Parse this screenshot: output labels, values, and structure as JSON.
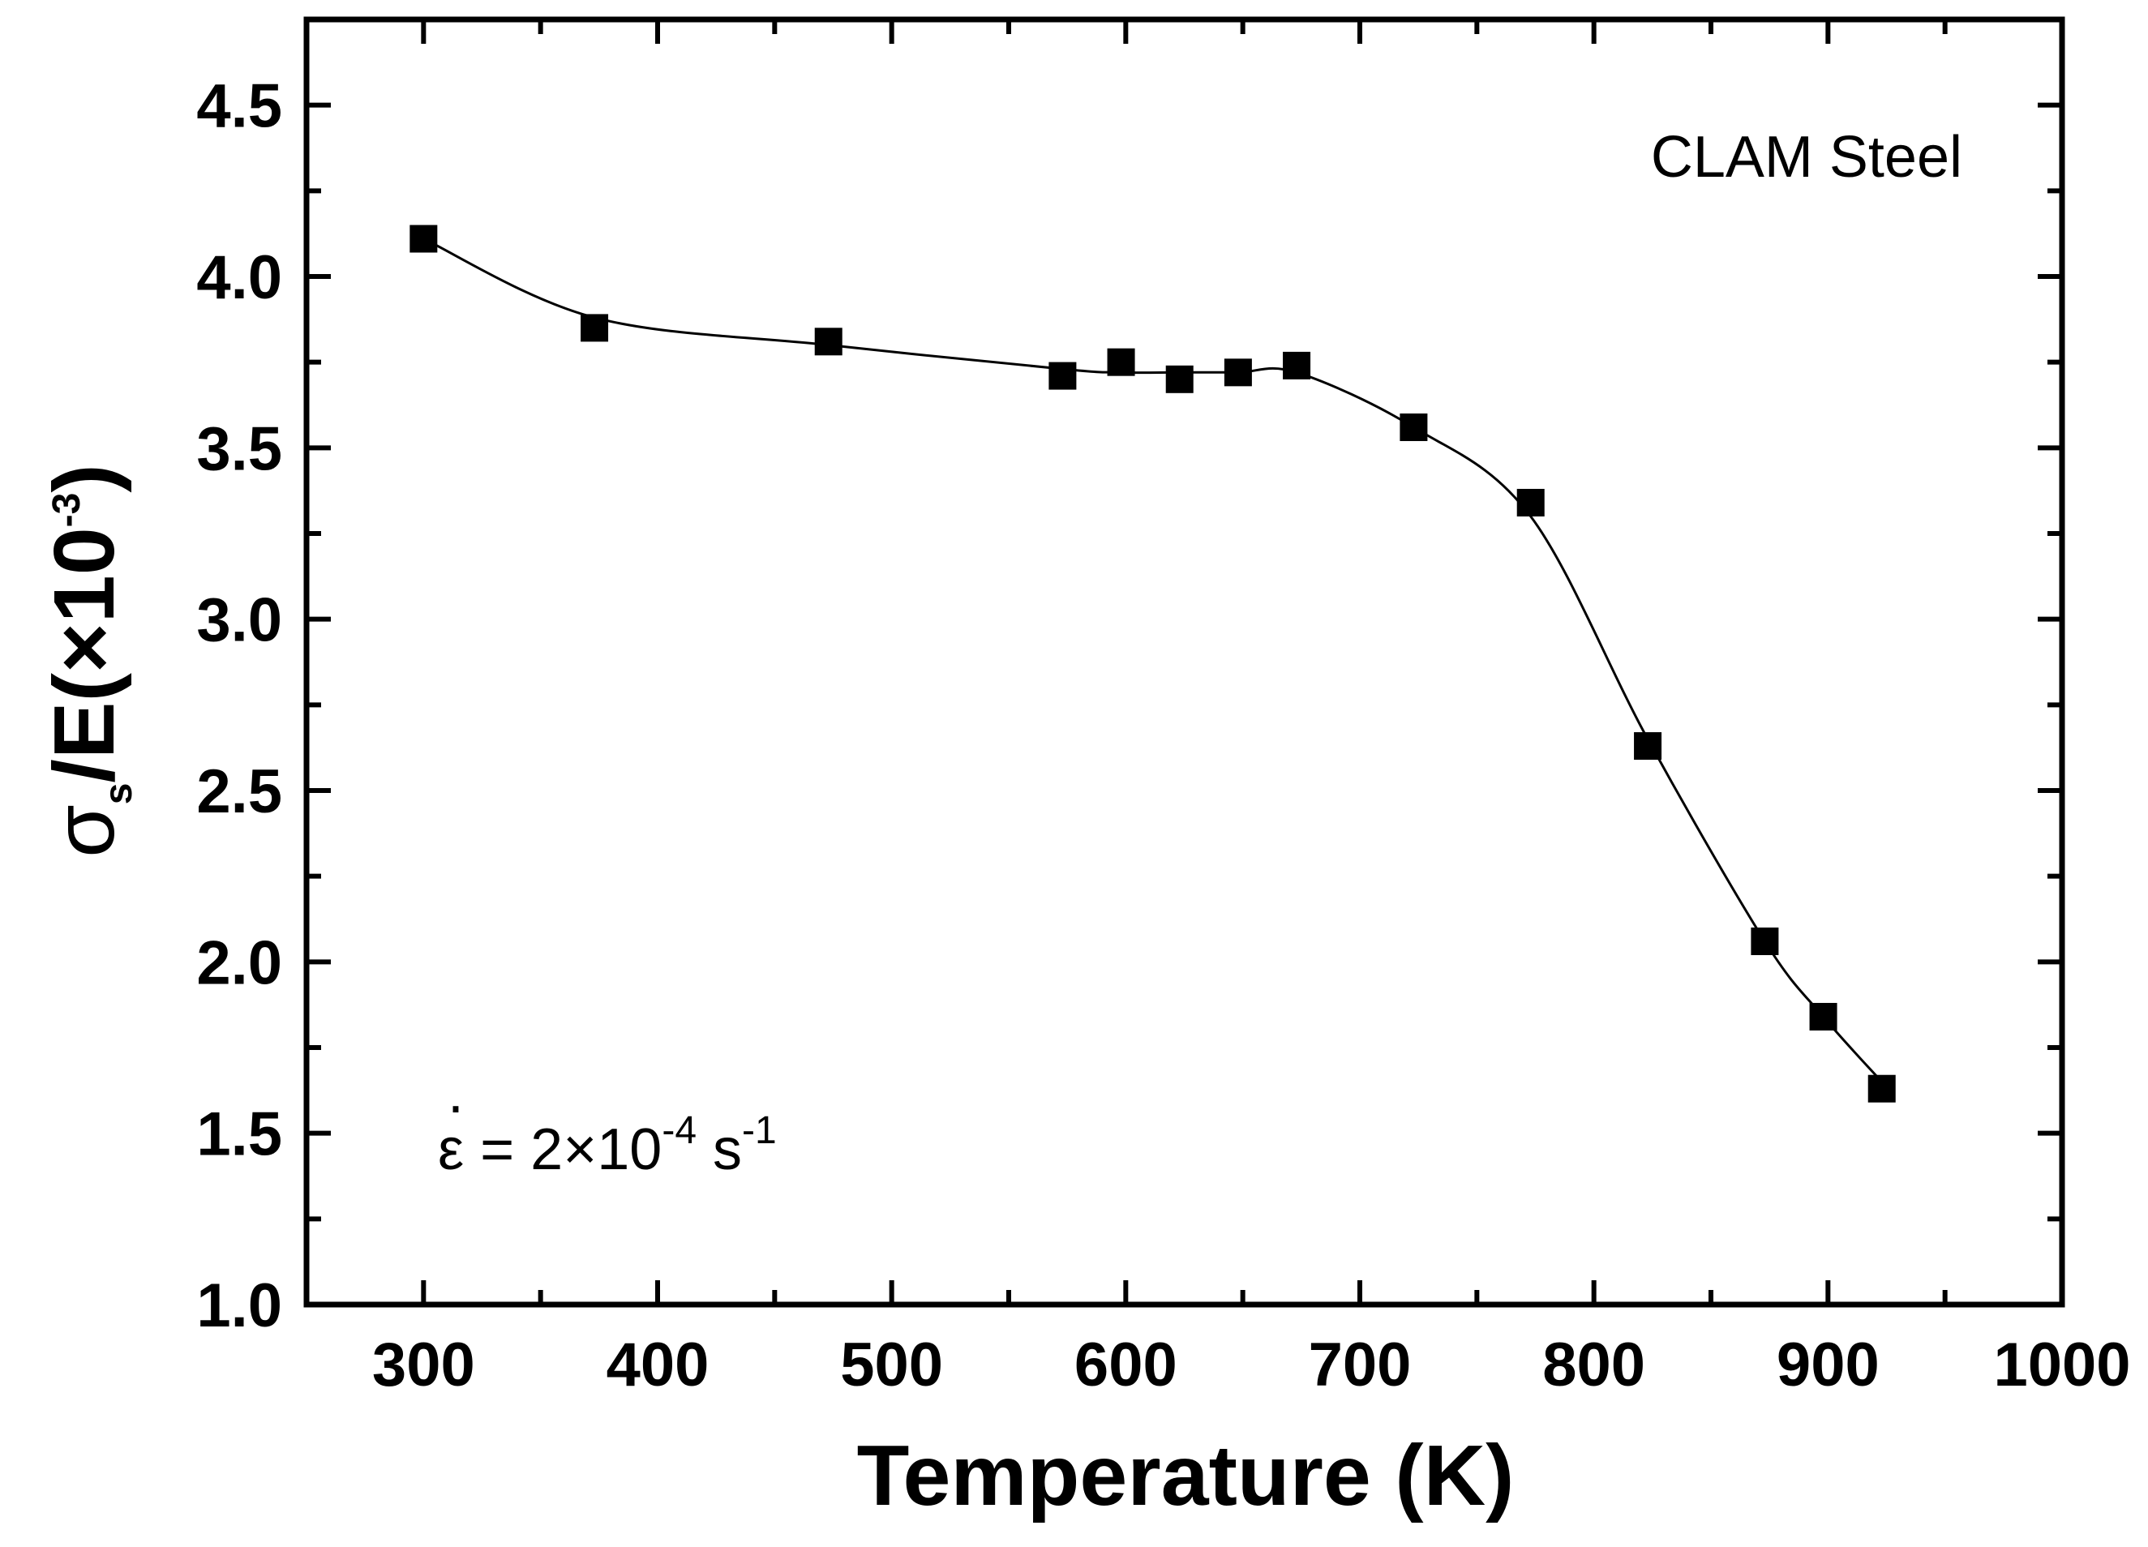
{
  "chart_data": {
    "type": "scatter",
    "title": "",
    "xlabel": "Temperature (K)",
    "ylabel": {
      "prefix": "σ",
      "subscript": "s",
      "middle": "/E(×10",
      "superscript": "-3",
      "suffix": ")"
    },
    "xlim": [
      250,
      1000
    ],
    "ylim": [
      1.0,
      4.75
    ],
    "xticks": [
      300,
      400,
      500,
      600,
      700,
      800,
      900,
      1000
    ],
    "xtick_labels": [
      "300",
      "400",
      "500",
      "600",
      "700",
      "800",
      "900",
      "1000"
    ],
    "yticks": [
      1.0,
      1.5,
      2.0,
      2.5,
      3.0,
      3.5,
      4.0,
      4.5
    ],
    "ytick_labels": [
      "1.0",
      "1.5",
      "2.0",
      "2.5",
      "3.0",
      "3.5",
      "4.0",
      "4.5"
    ],
    "grid": false,
    "series": [
      {
        "name": "CLAM Steel",
        "marker": "square",
        "x": [
          300,
          373,
          473,
          573,
          598,
          623,
          648,
          673,
          723,
          773,
          823,
          873,
          898,
          923
        ],
        "y": [
          4.11,
          3.85,
          3.81,
          3.71,
          3.75,
          3.7,
          3.72,
          3.74,
          3.56,
          3.34,
          2.63,
          2.06,
          1.84,
          1.63
        ]
      }
    ],
    "fit_curve": {
      "style": "smooth line",
      "x": [
        300,
        373,
        473,
        573,
        598,
        623,
        648,
        673,
        723,
        773,
        823,
        873,
        898,
        923
      ],
      "y": [
        4.11,
        3.88,
        3.8,
        3.73,
        3.72,
        3.72,
        3.72,
        3.72,
        3.56,
        3.3,
        2.65,
        2.06,
        1.84,
        1.65
      ]
    },
    "annotations": {
      "material": "CLAM Steel",
      "strain_rate": {
        "symbol": "ε",
        "dot": "·",
        "text": " = 2×10",
        "exponent": "-4",
        "unit": " s",
        "unit_exponent": "-1"
      }
    }
  },
  "colors": {
    "background": "#ffffff",
    "axis": "#000000",
    "marker": "#000000",
    "line": "#000000"
  }
}
